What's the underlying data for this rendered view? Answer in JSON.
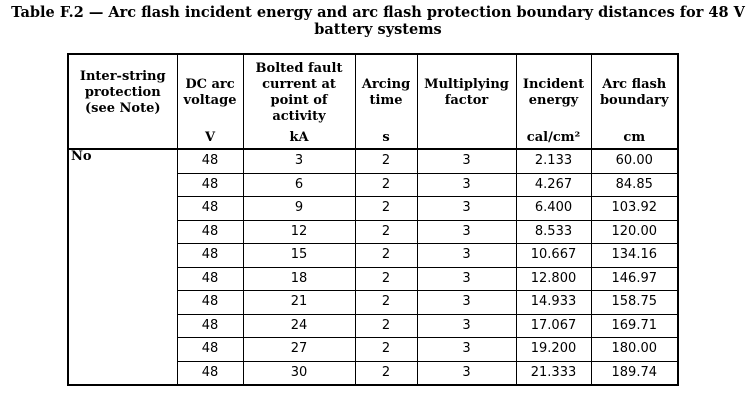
{
  "caption": {
    "line1": "Table F.2 — Arc flash incident energy and arc flash protection boundary distances for 48 V",
    "line2": "battery systems"
  },
  "table": {
    "headers": [
      "Inter-string protection (see Note)",
      "DC arc voltage",
      "Bolted fault current at point of activity",
      "Arcing time",
      "Multiplying factor",
      "Incident energy",
      "Arc flash boundary"
    ],
    "units": [
      "",
      "V",
      "kA",
      "s",
      "",
      "cal/cm²",
      "cm"
    ],
    "group_label": "No",
    "rows": [
      [
        "48",
        "3",
        "2",
        "3",
        "2.133",
        "60.00"
      ],
      [
        "48",
        "6",
        "2",
        "3",
        "4.267",
        "84.85"
      ],
      [
        "48",
        "9",
        "2",
        "3",
        "6.400",
        "103.92"
      ],
      [
        "48",
        "12",
        "2",
        "3",
        "8.533",
        "120.00"
      ],
      [
        "48",
        "15",
        "2",
        "3",
        "10.667",
        "134.16"
      ],
      [
        "48",
        "18",
        "2",
        "3",
        "12.800",
        "146.97"
      ],
      [
        "48",
        "21",
        "2",
        "3",
        "14.933",
        "158.75"
      ],
      [
        "48",
        "24",
        "2",
        "3",
        "17.067",
        "169.71"
      ],
      [
        "48",
        "27",
        "2",
        "3",
        "19.200",
        "180.00"
      ],
      [
        "48",
        "30",
        "2",
        "3",
        "21.333",
        "189.74"
      ]
    ]
  }
}
